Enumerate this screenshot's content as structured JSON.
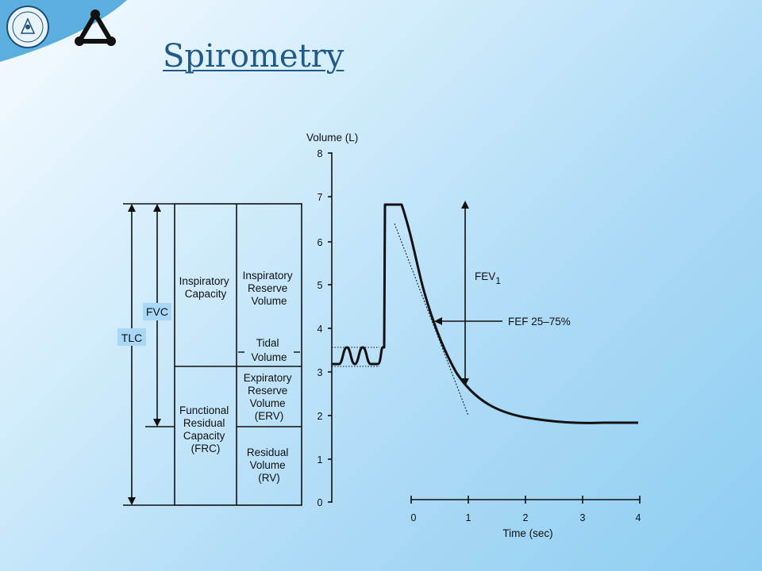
{
  "slide": {
    "title": "Spirometry",
    "accent_color": "#1f5b8a",
    "logo_icons": [
      "university-seal-icon",
      "triangle-nodes-icon"
    ]
  },
  "diagram": {
    "y_axis_label": "Volume (L)",
    "y_ticks": [
      "0",
      "1",
      "2",
      "3",
      "4",
      "5",
      "6",
      "7",
      "8"
    ],
    "x_axis_label": "Time (sec)",
    "x_ticks": [
      "0",
      "1",
      "2",
      "3",
      "4"
    ],
    "labels": {
      "tlc": "TLC",
      "fvc": "FVC",
      "inspiratory_capacity": [
        "Inspiratory",
        "Capacity"
      ],
      "inspiratory_reserve_volume": [
        "Inspiratory",
        "Reserve",
        "Volume"
      ],
      "tidal_volume": [
        "Tidal",
        "Volume"
      ],
      "expiratory_reserve_volume": [
        "Expiratory",
        "Reserve",
        "Volume",
        "(ERV)"
      ],
      "functional_residual_capacity": [
        "Functional",
        "Residual",
        "Capacity",
        "(FRC)"
      ],
      "residual_volume": [
        "Residual",
        "Volume",
        "(RV)"
      ],
      "fev": "FEV",
      "fev_subscript": "1",
      "fef": "FEF 25–75%"
    }
  }
}
